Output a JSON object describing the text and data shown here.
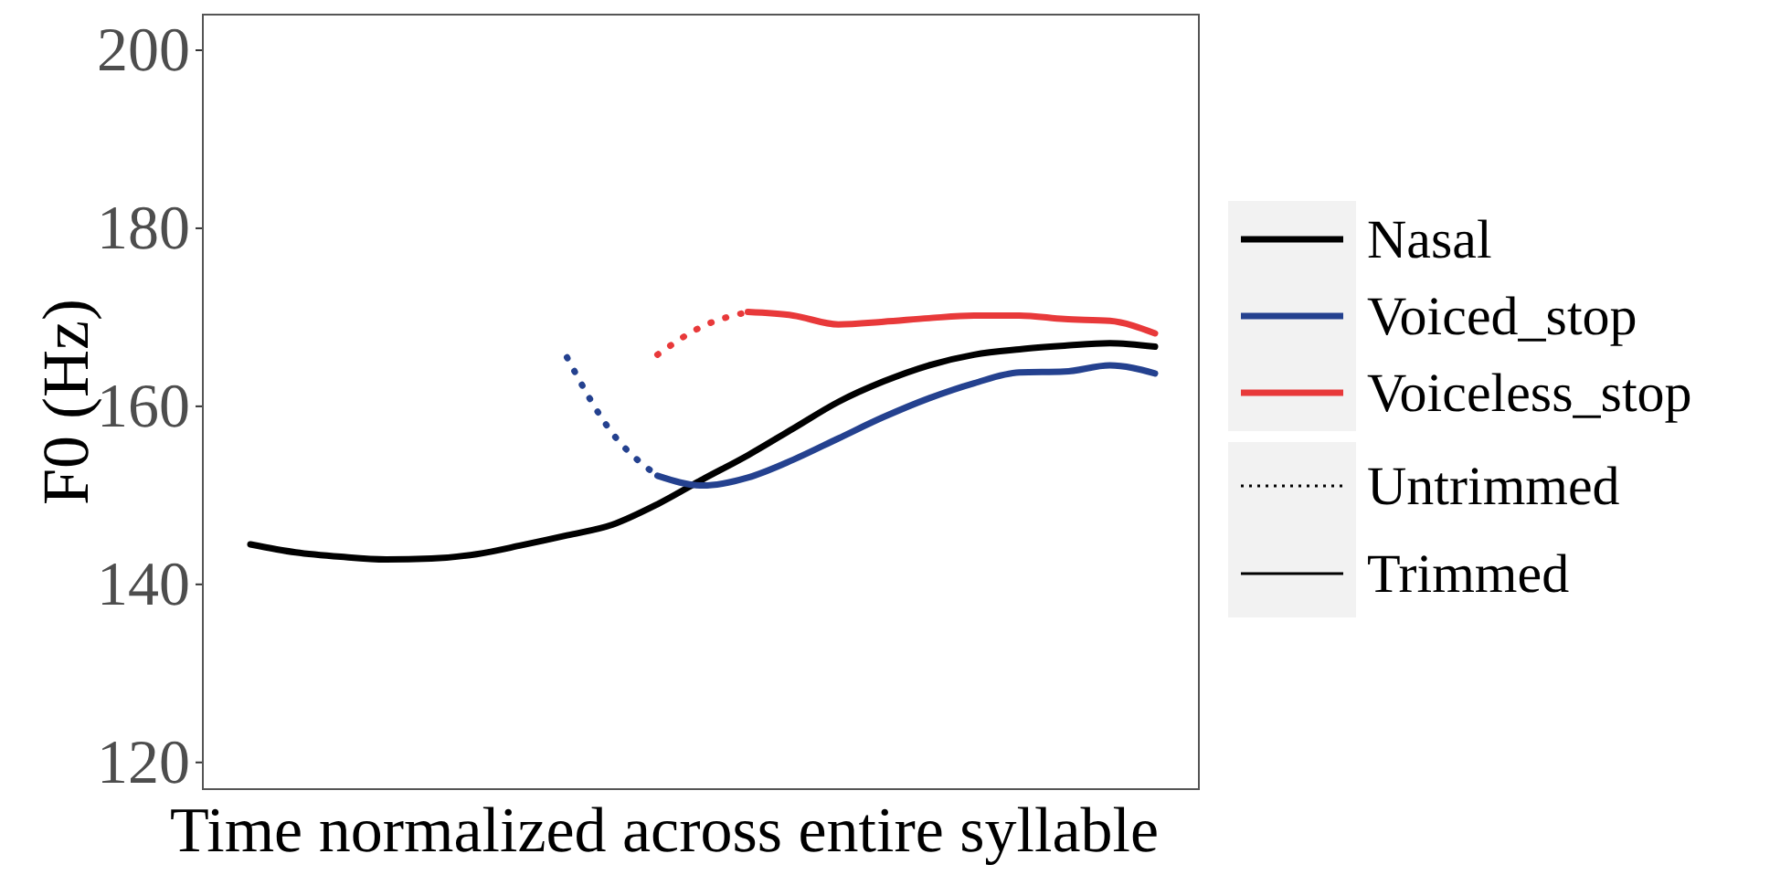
{
  "chart_data": {
    "type": "line",
    "xlabel": "Time normalized across entire syllable",
    "ylabel": "F0 (Hz)",
    "categories": [
      null,
      null,
      null,
      null,
      null,
      null,
      null,
      null,
      null,
      null,
      null,
      null,
      null,
      null,
      null,
      null,
      null,
      null,
      null,
      null,
      null
    ],
    "ylim": [
      117,
      204
    ],
    "yticks": [
      120,
      140,
      160,
      180,
      200
    ],
    "tick_labels": "y",
    "grid": false,
    "legend": "right",
    "series": [
      {
        "name": "Nasal",
        "color": "#000000",
        "line_style": "solid",
        "values": [
          144.5,
          143.6,
          143.1,
          142.8,
          142.9,
          143.4,
          144.4,
          145.5,
          146.7,
          149,
          151.8,
          154.5,
          157.5,
          160.5,
          162.8,
          164.6,
          165.8,
          166.4,
          166.8,
          167.1,
          166.7
        ]
      },
      {
        "color": "#24418f",
        "line_style": "dotted",
        "values": [
          null,
          null,
          null,
          null,
          null,
          null,
          null,
          165.5,
          157,
          152.2,
          null,
          null,
          null,
          null,
          null,
          null,
          null,
          null,
          null,
          null,
          null
        ]
      },
      {
        "name": "Voiced_stop",
        "color": "#24418f",
        "line_style": "solid",
        "values": [
          null,
          null,
          null,
          null,
          null,
          null,
          null,
          null,
          null,
          152.2,
          151.1,
          152,
          154,
          156.4,
          158.8,
          160.9,
          162.6,
          163.8,
          163.9,
          164.6,
          163.7
        ]
      },
      {
        "color": "#e8393a",
        "line_style": "dotted",
        "values": [
          null,
          null,
          null,
          null,
          null,
          null,
          null,
          null,
          null,
          165.8,
          169,
          170.6,
          null,
          null,
          null,
          null,
          null,
          null,
          null,
          null,
          null
        ]
      },
      {
        "name": "Voiceless_stop",
        "color": "#e8393a",
        "line_style": "solid",
        "values": [
          null,
          null,
          null,
          null,
          null,
          null,
          null,
          null,
          null,
          null,
          null,
          170.6,
          170.2,
          169.2,
          169.5,
          169.9,
          170.2,
          170.2,
          169.8,
          169.6,
          168.2
        ]
      }
    ],
    "annotations": [
      "Untrimmed",
      "Trimmed"
    ]
  }
}
